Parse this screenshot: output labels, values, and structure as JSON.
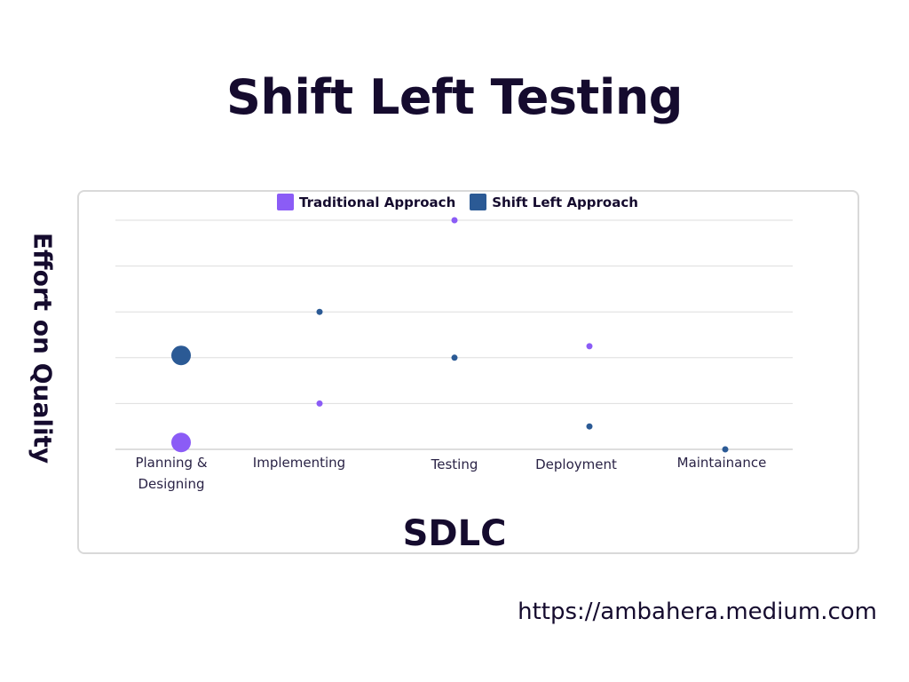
{
  "title": "Shift Left Testing",
  "footer_url": "https://ambahera.medium.com",
  "colors": {
    "traditional": "#8b5cf6",
    "shift_left": "#2b5a95",
    "text": "#150b2e",
    "grid": "#d9d9d9"
  },
  "chart_data": {
    "type": "scatter",
    "title": "",
    "xlabel": "SDLC",
    "ylabel": "Effort on Quality",
    "categories": [
      [
        "Planning &",
        "Designing"
      ],
      [
        "Implementing"
      ],
      [
        "Testing"
      ],
      [
        "Deployment"
      ],
      [
        "Maintainance"
      ]
    ],
    "ylim": [
      0,
      5
    ],
    "grid": true,
    "legend_position": "top-center",
    "series": [
      {
        "name": "Traditional Approach",
        "color": "#8b5cf6",
        "values": [
          0.15,
          1.0,
          5.0,
          2.25,
          null
        ],
        "sizes": [
          3,
          1,
          1,
          1,
          null
        ]
      },
      {
        "name": "Shift Left Approach",
        "color": "#2b5a95",
        "values": [
          2.05,
          3.0,
          2.0,
          0.5,
          0.0
        ],
        "sizes": [
          3,
          1,
          1,
          1,
          1
        ]
      }
    ]
  }
}
